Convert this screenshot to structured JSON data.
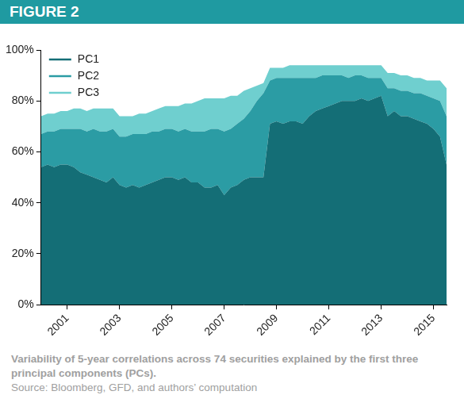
{
  "chart_data": {
    "type": "area",
    "title": "FIGURE 2",
    "caption": "Variability of 5-year correlations across 74 securities explained by the first three principal components (PCs).",
    "source": "Source: Bloomberg, GFD, and authors’ computation",
    "stacked": true,
    "grid": false,
    "legend": "upper left",
    "x": [
      2000,
      2000.25,
      2000.5,
      2000.75,
      2001,
      2001.25,
      2001.5,
      2001.75,
      2002,
      2002.25,
      2002.5,
      2002.75,
      2003,
      2003.25,
      2003.5,
      2003.75,
      2004,
      2004.25,
      2004.5,
      2004.75,
      2005,
      2005.25,
      2005.5,
      2005.75,
      2006,
      2006.25,
      2006.5,
      2006.75,
      2007,
      2007.25,
      2007.5,
      2007.75,
      2008,
      2008.25,
      2008.5,
      2008.75,
      2009,
      2009.25,
      2009.5,
      2009.75,
      2010,
      2010.25,
      2010.5,
      2010.75,
      2011,
      2011.25,
      2011.5,
      2011.75,
      2012,
      2012.25,
      2012.5,
      2012.75,
      2013,
      2013.25,
      2013.5,
      2013.75,
      2014,
      2014.25,
      2014.5,
      2014.75,
      2015,
      2015.25,
      2015.5
    ],
    "xlim": [
      2000,
      2015.5
    ],
    "xticks": [
      2001,
      2003,
      2005,
      2007,
      2009,
      2011,
      2013,
      2015
    ],
    "ylim": [
      0,
      100
    ],
    "yticks": [
      {
        "value": 0,
        "label": "0%"
      },
      {
        "value": 20,
        "label": "20%"
      },
      {
        "value": 40,
        "label": "40%"
      },
      {
        "value": 60,
        "label": "60%"
      },
      {
        "value": 80,
        "label": "80%"
      },
      {
        "value": 100,
        "label": "100%"
      }
    ],
    "series": [
      {
        "name": "PC1",
        "color": "#146e76",
        "values": [
          54,
          55,
          54,
          55,
          55,
          54,
          52,
          51,
          50,
          49,
          48,
          50,
          47,
          46,
          47,
          46,
          47,
          48,
          49,
          50,
          50,
          49,
          50,
          48,
          48,
          46,
          46,
          47,
          43,
          46,
          47,
          49,
          50,
          50,
          50,
          71,
          72,
          71,
          72,
          72,
          71,
          74,
          76,
          77,
          78,
          79,
          80,
          80,
          80,
          81,
          80,
          81,
          82,
          74,
          76,
          74,
          74,
          73,
          72,
          71,
          69,
          66,
          55
        ]
      },
      {
        "name": "PC2",
        "color": "#2b9ca4",
        "values": [
          13,
          13,
          14,
          14,
          14,
          15,
          17,
          17,
          19,
          19,
          20,
          19,
          19,
          20,
          20,
          21,
          20,
          20,
          19,
          19,
          19,
          19,
          19,
          20,
          20,
          22,
          23,
          22,
          25,
          23,
          24,
          24,
          26,
          30,
          33,
          17,
          17,
          18,
          17,
          17,
          18,
          15,
          13,
          13,
          12,
          11,
          10,
          9,
          10,
          9,
          9,
          8,
          7,
          11,
          9,
          10,
          10,
          10,
          11,
          11,
          12,
          14,
          19
        ]
      },
      {
        "name": "PC3",
        "color": "#6fcfcf",
        "values": [
          7,
          7,
          7,
          7,
          7,
          8,
          8,
          8,
          8,
          9,
          9,
          8,
          8,
          8,
          7,
          8,
          8,
          8,
          9,
          9,
          9,
          10,
          10,
          11,
          12,
          13,
          12,
          12,
          13,
          13,
          11,
          11,
          9,
          6,
          4,
          5,
          4,
          4,
          5,
          5,
          5,
          5,
          5,
          4,
          4,
          4,
          4,
          5,
          4,
          4,
          5,
          5,
          5,
          6,
          6,
          6,
          6,
          6,
          6,
          6,
          7,
          8,
          11
        ]
      }
    ]
  }
}
